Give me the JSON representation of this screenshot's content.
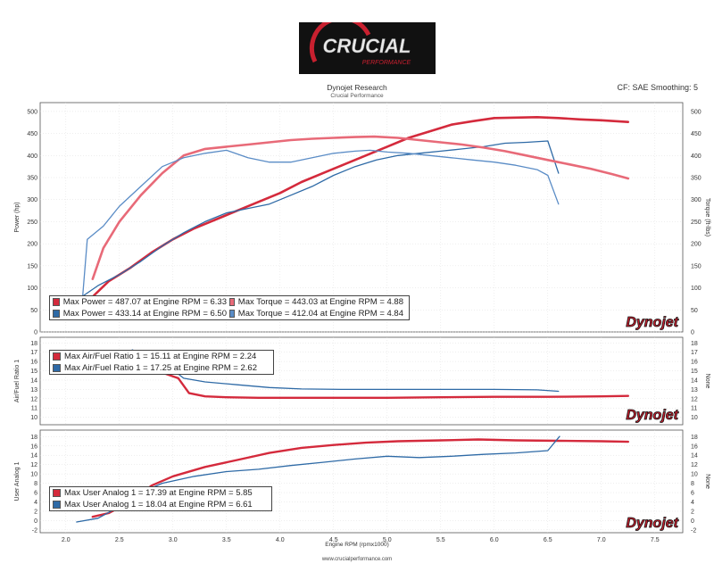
{
  "header": {
    "logo_text": "CRUCIAL",
    "logo_sub": "PERFORMANCE",
    "title": "Dynojet Research",
    "subtitle": "Crucial Performance",
    "cf": "CF: SAE Smoothing: 5"
  },
  "footer": {
    "url": "www.crucialperformance.com"
  },
  "watermark": "Dynojet",
  "colors": {
    "red": "#d42a3c",
    "pink": "#e86a78",
    "blue": "#2e6aa6",
    "lightblue": "#5a8cc6"
  },
  "chart_data": [
    {
      "type": "line",
      "xlabel": "Engine RPM (rpmx1000)",
      "x_ticks": [
        "2.0",
        "2.5",
        "3.0",
        "3.5",
        "4.0",
        "4.5",
        "5.0",
        "5.5",
        "6.0",
        "6.5",
        "7.0",
        "7.5"
      ],
      "xlim": [
        1.76,
        7.76
      ],
      "ylabel": "Power (hp)",
      "ylabel_right": "Torque (ft-lbs)",
      "ylim": [
        0,
        520
      ],
      "y_ticks": [
        "0",
        "50",
        "100",
        "150",
        "200",
        "250",
        "300",
        "350",
        "400",
        "450",
        "500"
      ],
      "legend": [
        [
          "Max Power = 487.07 at Engine RPM = 6.33",
          "Max Torque = 443.03 at Engine RPM = 4.88"
        ],
        [
          "Max Power = 433.14 at Engine RPM = 6.50",
          "Max Torque = 412.04 at Engine RPM = 4.84"
        ]
      ],
      "series": [
        {
          "name": "Max Power = 487.07 at Engine RPM = 6.33",
          "color": "#d42a3c",
          "width": 2.6,
          "x": [
            2.25,
            2.4,
            2.6,
            2.8,
            3.0,
            3.2,
            3.4,
            3.6,
            3.8,
            4.0,
            4.2,
            4.4,
            4.6,
            4.8,
            5.0,
            5.2,
            5.4,
            5.6,
            5.8,
            6.0,
            6.2,
            6.4,
            6.6,
            6.8,
            7.0,
            7.25
          ],
          "y": [
            80,
            115,
            145,
            180,
            210,
            235,
            255,
            275,
            295,
            315,
            340,
            360,
            380,
            400,
            420,
            440,
            455,
            470,
            478,
            485,
            486,
            487,
            485,
            482,
            480,
            476
          ]
        },
        {
          "name": "Max Power = 433.14 at Engine RPM = 6.50",
          "color": "#2e6aa6",
          "width": 1.3,
          "x": [
            2.15,
            2.3,
            2.5,
            2.7,
            2.9,
            3.1,
            3.3,
            3.5,
            3.7,
            3.9,
            4.1,
            4.3,
            4.5,
            4.7,
            4.9,
            5.1,
            5.3,
            5.5,
            5.7,
            5.9,
            6.1,
            6.3,
            6.5,
            6.6
          ],
          "y": [
            80,
            105,
            130,
            160,
            195,
            225,
            250,
            270,
            280,
            290,
            310,
            330,
            355,
            375,
            390,
            400,
            405,
            410,
            415,
            420,
            428,
            430,
            433,
            360
          ]
        },
        {
          "name": "Max Torque = 443.03 at Engine RPM = 4.88",
          "color": "#e86a78",
          "width": 2.6,
          "x": [
            2.25,
            2.35,
            2.5,
            2.7,
            2.9,
            3.1,
            3.3,
            3.5,
            3.7,
            3.9,
            4.1,
            4.3,
            4.5,
            4.7,
            4.88,
            5.1,
            5.3,
            5.5,
            5.7,
            5.9,
            6.1,
            6.3,
            6.5,
            6.7,
            6.9,
            7.1,
            7.25
          ],
          "y": [
            120,
            190,
            250,
            310,
            360,
            400,
            415,
            420,
            425,
            430,
            435,
            438,
            440,
            442,
            443,
            440,
            435,
            430,
            425,
            418,
            410,
            400,
            390,
            380,
            370,
            358,
            348
          ]
        },
        {
          "name": "Max Torque = 412.04 at Engine RPM = 4.84",
          "color": "#5a8cc6",
          "width": 1.3,
          "x": [
            2.15,
            2.2,
            2.35,
            2.5,
            2.7,
            2.9,
            3.1,
            3.3,
            3.5,
            3.7,
            3.9,
            4.1,
            4.3,
            4.5,
            4.7,
            4.84,
            5.0,
            5.2,
            5.4,
            5.6,
            5.8,
            6.0,
            6.2,
            6.4,
            6.5,
            6.6
          ],
          "y": [
            60,
            210,
            240,
            285,
            330,
            375,
            395,
            405,
            412,
            395,
            385,
            385,
            395,
            405,
            410,
            412,
            408,
            405,
            400,
            395,
            390,
            385,
            378,
            368,
            355,
            290
          ]
        }
      ]
    },
    {
      "type": "line",
      "ylabel": "Air/Fuel Ratio 1",
      "ylabel_right": "None",
      "ylim": [
        9.2,
        18.6
      ],
      "y_ticks": [
        "10",
        "11",
        "12",
        "13",
        "14",
        "15",
        "16",
        "17",
        "18"
      ],
      "legend": [
        [
          "Max Air/Fuel Ratio 1 = 15.11 at Engine RPM = 2.24"
        ],
        [
          "Max Air/Fuel Ratio 1 = 17.25 at Engine RPM = 2.62"
        ]
      ],
      "series": [
        {
          "name": "Max Air/Fuel Ratio 1 = 15.11 at Engine RPM = 2.24",
          "color": "#d42a3c",
          "width": 2.4,
          "x": [
            2.24,
            2.6,
            2.9,
            3.05,
            3.15,
            3.3,
            3.5,
            3.8,
            4.2,
            4.6,
            5.0,
            5.5,
            6.0,
            6.5,
            7.0,
            7.25
          ],
          "y": [
            15.11,
            15.0,
            14.8,
            14.2,
            12.6,
            12.25,
            12.15,
            12.1,
            12.1,
            12.1,
            12.1,
            12.15,
            12.2,
            12.2,
            12.25,
            12.3
          ]
        },
        {
          "name": "Max Air/Fuel Ratio 1 = 17.25 at Engine RPM = 2.62",
          "color": "#2e6aa6",
          "width": 1.3,
          "x": [
            2.62,
            2.9,
            3.1,
            3.3,
            3.6,
            3.9,
            4.2,
            4.6,
            5.0,
            5.5,
            6.0,
            6.4,
            6.6
          ],
          "y": [
            17.25,
            16.0,
            14.2,
            13.8,
            13.5,
            13.2,
            13.05,
            13.0,
            13.0,
            13.0,
            13.0,
            12.95,
            12.8
          ]
        }
      ]
    },
    {
      "type": "line",
      "ylabel": "User Analog 1",
      "ylabel_right": "None",
      "ylim": [
        -2.6,
        19.4
      ],
      "y_ticks": [
        "-2",
        "0",
        "2",
        "4",
        "6",
        "8",
        "10",
        "12",
        "14",
        "16",
        "18"
      ],
      "legend": [
        [
          "Max User Analog 1 = 17.39 at Engine RPM = 5.85"
        ],
        [
          "Max User Analog 1 = 18.04 at Engine RPM = 6.61"
        ]
      ],
      "series": [
        {
          "name": "Max User Analog 1 = 17.39 at Engine RPM = 5.85",
          "color": "#d42a3c",
          "width": 2.4,
          "x": [
            2.25,
            2.4,
            2.6,
            2.8,
            3.0,
            3.3,
            3.6,
            3.9,
            4.2,
            4.5,
            4.8,
            5.1,
            5.5,
            5.85,
            6.2,
            6.6,
            7.0,
            7.25
          ],
          "y": [
            0.8,
            1.6,
            4.0,
            7.5,
            9.5,
            11.5,
            13.0,
            14.5,
            15.6,
            16.2,
            16.7,
            17.0,
            17.2,
            17.39,
            17.2,
            17.1,
            17.0,
            16.9
          ]
        },
        {
          "name": "Max User Analog 1 = 18.04 at Engine RPM = 6.61",
          "color": "#2e6aa6",
          "width": 1.3,
          "x": [
            2.1,
            2.3,
            2.5,
            2.7,
            2.9,
            3.2,
            3.5,
            3.8,
            4.1,
            4.4,
            4.7,
            5.0,
            5.3,
            5.6,
            5.9,
            6.2,
            6.5,
            6.61
          ],
          "y": [
            -0.3,
            0.5,
            3.0,
            6.0,
            8.0,
            9.5,
            10.5,
            11.0,
            11.8,
            12.5,
            13.2,
            13.8,
            13.5,
            13.8,
            14.2,
            14.5,
            15.0,
            18.04
          ]
        }
      ]
    }
  ]
}
